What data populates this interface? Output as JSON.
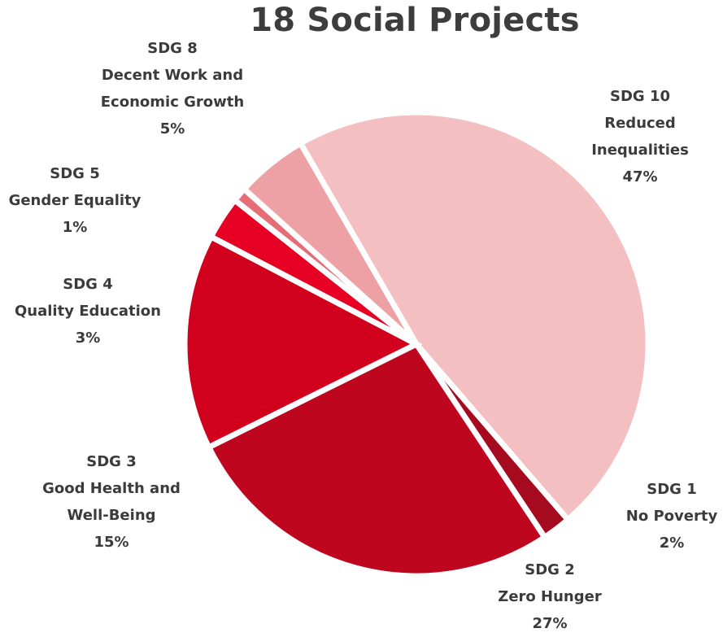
{
  "chart_data": {
    "type": "pie",
    "title": "18 Social Projects",
    "start_angle_deg": -120,
    "direction": "clockwise",
    "slices": [
      {
        "label_lines": [
          "SDG 10",
          "Reduced",
          "Inequalities"
        ],
        "pct_text": "47%",
        "value": 47,
        "color": "#f3bfc1"
      },
      {
        "label_lines": [
          "SDG 1",
          "No Poverty"
        ],
        "pct_text": "2%",
        "value": 2,
        "color": "#a50a1e"
      },
      {
        "label_lines": [
          "SDG 2",
          "Zero Hunger"
        ],
        "pct_text": "27%",
        "value": 27,
        "color": "#be061e"
      },
      {
        "label_lines": [
          "SDG 3",
          "Good Health and",
          "Well-Being"
        ],
        "pct_text": "15%",
        "value": 15,
        "color": "#d1001c"
      },
      {
        "label_lines": [
          "SDG 4",
          "Quality Education"
        ],
        "pct_text": "3%",
        "value": 3,
        "color": "#e50024"
      },
      {
        "label_lines": [
          "SDG 5",
          "Gender Equality"
        ],
        "pct_text": "1%",
        "value": 1,
        "color": "#e66d75"
      },
      {
        "label_lines": [
          "SDG 8",
          "Decent Work and",
          "Economic Growth"
        ],
        "pct_text": "5%",
        "value": 5,
        "color": "#eea1a4"
      }
    ]
  }
}
